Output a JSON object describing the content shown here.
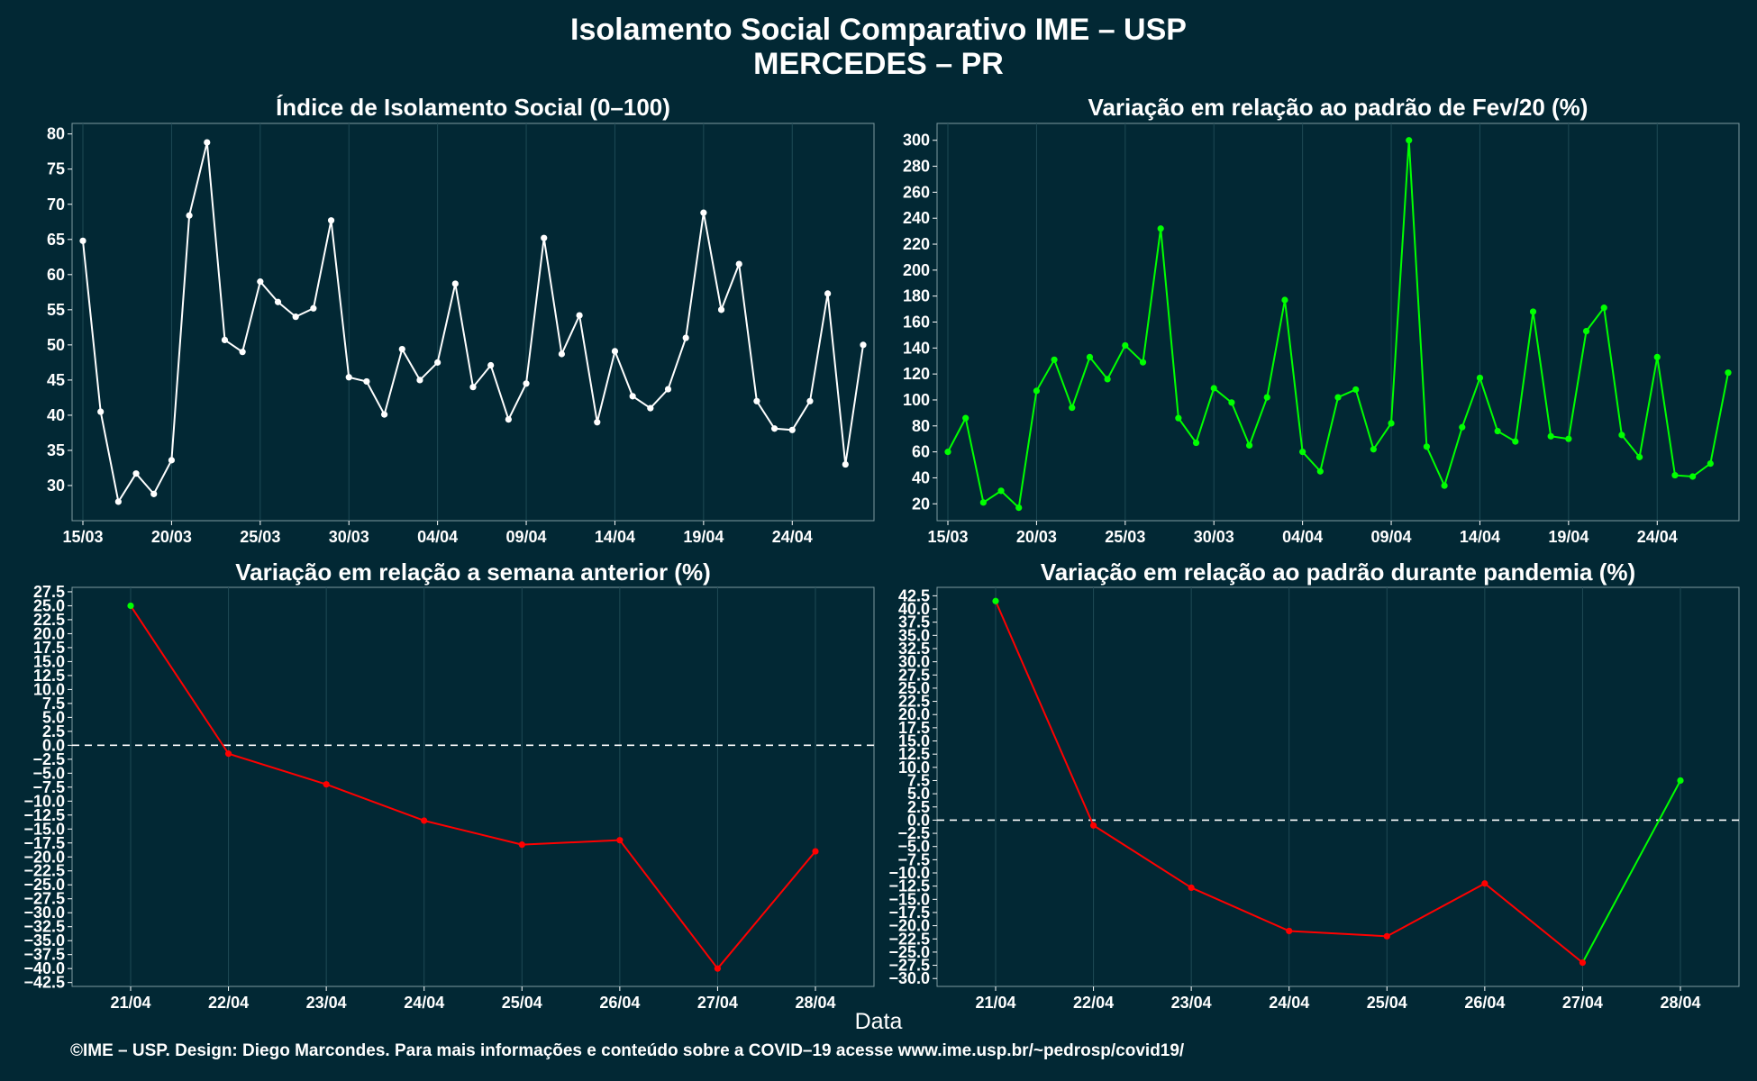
{
  "title_line1": "Isolamento Social Comparativo IME – USP",
  "title_line2": "MERCEDES – PR",
  "xlabel": "Data",
  "footer": "©IME – USP. Design: Diego Marcondes. Para mais informações e conteúdo sobre a COVID–19 acesse www.ime.usp.br/~pedrosp/covid19/",
  "colors": {
    "background": "#022834",
    "white": "#ffffff",
    "green": "#00ff00",
    "red": "#ff0000",
    "grid": "#1e4a55"
  },
  "chart_data": [
    {
      "type": "line",
      "title": "Índice de Isolamento Social (0–100)",
      "x": [
        "15/03",
        "16/03",
        "17/03",
        "18/03",
        "19/03",
        "20/03",
        "21/03",
        "22/03",
        "23/03",
        "24/03",
        "25/03",
        "26/03",
        "27/03",
        "28/03",
        "29/03",
        "30/03",
        "31/03",
        "01/04",
        "02/04",
        "03/04",
        "04/04",
        "05/04",
        "06/04",
        "07/04",
        "08/04",
        "09/04",
        "10/04",
        "11/04",
        "12/04",
        "13/04",
        "14/04",
        "15/04",
        "16/04",
        "17/04",
        "18/04",
        "19/04",
        "20/04",
        "21/04",
        "22/04",
        "23/04",
        "24/04",
        "25/04",
        "26/04",
        "27/04",
        "28/04"
      ],
      "values": [
        64.8,
        40.5,
        27.7,
        31.7,
        28.8,
        33.6,
        68.4,
        78.8,
        50.7,
        49.0,
        59.0,
        56.1,
        54.0,
        55.2,
        67.7,
        45.4,
        44.8,
        40.1,
        49.4,
        45.0,
        47.5,
        58.7,
        44.0,
        47.1,
        39.4,
        44.5,
        65.2,
        48.7,
        54.2,
        39.0,
        49.1,
        42.7,
        41.0,
        43.7,
        51.0,
        68.8,
        55.0,
        61.5,
        42.0,
        38.1,
        37.9,
        42.0,
        57.3,
        33.0,
        50.0
      ],
      "x_ticks": [
        "15/03",
        "20/03",
        "25/03",
        "30/03",
        "04/04",
        "09/04",
        "14/04",
        "19/04",
        "24/04"
      ],
      "y_ticks": [
        "30",
        "35",
        "40",
        "45",
        "50",
        "55",
        "60",
        "65",
        "70",
        "75",
        "80"
      ],
      "ylim": [
        25,
        81.5
      ],
      "color": "#ffffff",
      "grid": true
    },
    {
      "type": "line",
      "title": "Variação em relação ao padrão de Fev/20 (%)",
      "x": [
        "15/03",
        "16/03",
        "17/03",
        "18/03",
        "19/03",
        "20/03",
        "21/03",
        "22/03",
        "23/03",
        "24/03",
        "25/03",
        "26/03",
        "27/03",
        "28/03",
        "29/03",
        "30/03",
        "31/03",
        "01/04",
        "02/04",
        "03/04",
        "04/04",
        "05/04",
        "06/04",
        "07/04",
        "08/04",
        "09/04",
        "10/04",
        "11/04",
        "12/04",
        "13/04",
        "14/04",
        "15/04",
        "16/04",
        "17/04",
        "18/04",
        "19/04",
        "20/04",
        "21/04",
        "22/04",
        "23/04",
        "24/04",
        "25/04",
        "26/04",
        "27/04",
        "28/04"
      ],
      "values": [
        60,
        86,
        21,
        30,
        17,
        107,
        131,
        94,
        133,
        116,
        142,
        129,
        232,
        86,
        67,
        109,
        98,
        65,
        102,
        177,
        60,
        45,
        102,
        108,
        62,
        82,
        300,
        64,
        34,
        79,
        117,
        76,
        68,
        168,
        72,
        70,
        153,
        171,
        73,
        56,
        133,
        42,
        41,
        51,
        121
      ],
      "x_ticks": [
        "15/03",
        "20/03",
        "25/03",
        "30/03",
        "04/04",
        "09/04",
        "14/04",
        "19/04",
        "24/04"
      ],
      "y_ticks": [
        "20",
        "40",
        "60",
        "80",
        "100",
        "120",
        "140",
        "160",
        "180",
        "200",
        "220",
        "240",
        "260",
        "280",
        "300"
      ],
      "ylim": [
        7,
        313
      ],
      "color": "#00ff00",
      "grid": true
    },
    {
      "type": "line",
      "title": "Variação em relação a semana anterior (%)",
      "x": [
        "21/04",
        "22/04",
        "23/04",
        "24/04",
        "25/04",
        "26/04",
        "27/04",
        "28/04"
      ],
      "values": [
        25.0,
        -1.5,
        -7.0,
        -13.5,
        -17.8,
        -17.0,
        -40.0,
        -19.0
      ],
      "point_colors": [
        "#00ff00",
        "#ff0000",
        "#ff0000",
        "#ff0000",
        "#ff0000",
        "#ff0000",
        "#ff0000",
        "#ff0000"
      ],
      "x_ticks": [
        "21/04",
        "22/04",
        "23/04",
        "24/04",
        "25/04",
        "26/04",
        "27/04",
        "28/04"
      ],
      "y_ticks": [
        "−42.5",
        "−40.0",
        "−37.5",
        "−35.0",
        "−32.5",
        "−30.0",
        "−27.5",
        "−25.0",
        "−22.5",
        "−20.0",
        "−17.5",
        "−15.0",
        "−12.5",
        "−10.0",
        "−7.5",
        "−5.0",
        "−2.5",
        "0.0",
        "2.5",
        "5.0",
        "7.5",
        "10.0",
        "12.5",
        "15.0",
        "17.5",
        "20.0",
        "22.5",
        "25.0",
        "27.5"
      ],
      "ylim": [
        -43.2,
        28.3
      ],
      "reference_line": 0,
      "grid": true
    },
    {
      "type": "line",
      "title": "Variação em relação ao padrão durante pandemia (%)",
      "x": [
        "21/04",
        "22/04",
        "23/04",
        "24/04",
        "25/04",
        "26/04",
        "27/04",
        "28/04"
      ],
      "values": [
        41.5,
        -1.0,
        -12.8,
        -21.0,
        -22.0,
        -12.0,
        -27.0,
        7.5
      ],
      "point_colors": [
        "#00ff00",
        "#ff0000",
        "#ff0000",
        "#ff0000",
        "#ff0000",
        "#ff0000",
        "#ff0000",
        "#00ff00"
      ],
      "x_ticks": [
        "21/04",
        "22/04",
        "23/04",
        "24/04",
        "25/04",
        "26/04",
        "27/04",
        "28/04"
      ],
      "y_ticks": [
        "−30.0",
        "−27.5",
        "−25.0",
        "−22.5",
        "−20.0",
        "−17.5",
        "−15.0",
        "−12.5",
        "−10.0",
        "−7.5",
        "−5.0",
        "−2.5",
        "0.0",
        "2.5",
        "5.0",
        "7.5",
        "10.0",
        "12.5",
        "15.0",
        "17.5",
        "20.0",
        "22.5",
        "25.0",
        "27.5",
        "30.0",
        "32.5",
        "35.0",
        "37.5",
        "40.0",
        "42.5"
      ],
      "ylim": [
        -31.5,
        44.1
      ],
      "reference_line": 0,
      "grid": true
    }
  ]
}
